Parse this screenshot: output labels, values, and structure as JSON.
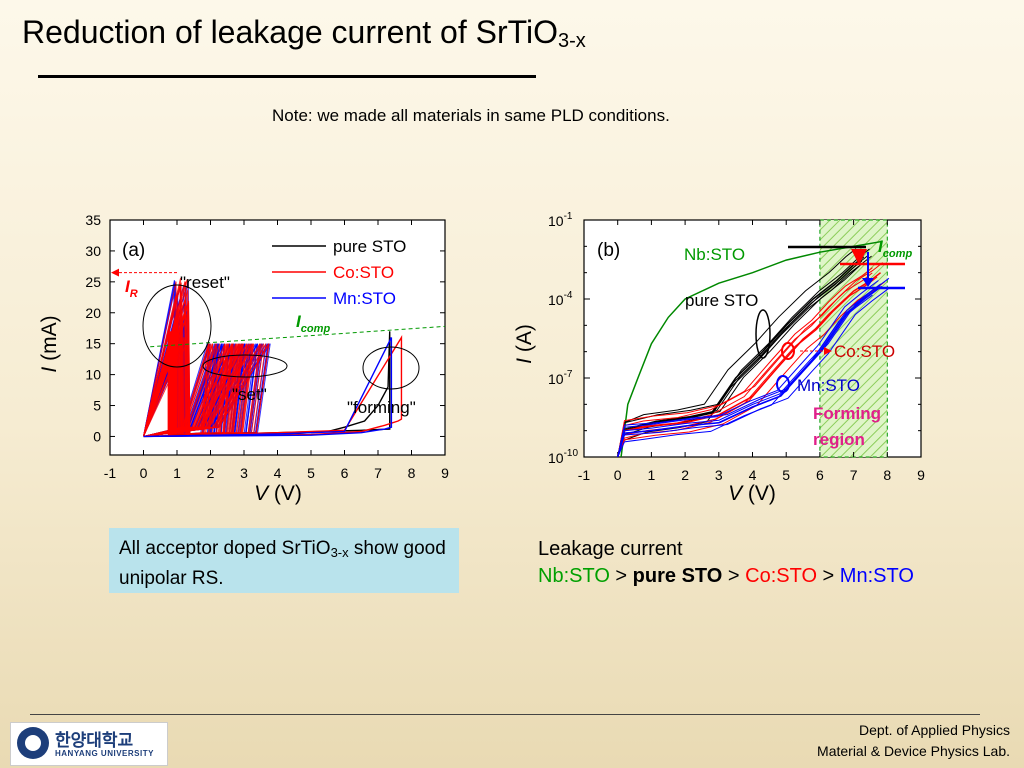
{
  "slide": {
    "title_main": "Reduction of leakage current of SrTiO",
    "title_sub": "3-x",
    "note": "Note: we made all materials in same PLD conditions.",
    "box_text_1": "All acceptor doped SrTiO",
    "box_sub": "3-x",
    "box_text_2": " show good unipolar RS.",
    "leakage_title": "Leakage current",
    "order": [
      {
        "text": "Nb:STO",
        "color": "#00a000",
        "bold": false
      },
      {
        "text": " > ",
        "color": "#000000",
        "bold": false
      },
      {
        "text": "pure STO",
        "color": "#000000",
        "bold": true
      },
      {
        "text": " > ",
        "color": "#000000",
        "bold": false
      },
      {
        "text": "Co:STO",
        "color": "#ff0000",
        "bold": false
      },
      {
        "text": " > ",
        "color": "#000000",
        "bold": false
      },
      {
        "text": "Mn:STO",
        "color": "#0000ff",
        "bold": false
      }
    ],
    "footer_line1": "Dept. of Applied Physics",
    "footer_line2": "Material & Device Physics Lab.",
    "logo_korean": "한양대학교",
    "logo_english": "HANYANG UNIVERSITY"
  },
  "colors": {
    "pure": "#000000",
    "co": "#ff0000",
    "mn": "#0000ff",
    "nb": "#008800",
    "icomp": "#00aa00",
    "forming": "#e0208a"
  },
  "chart_data": [
    {
      "type": "line",
      "panel_label": "(a)",
      "xlabel": "V (V)",
      "ylabel": "I (mA)",
      "xlim": [
        -1,
        9
      ],
      "ylim": [
        -3,
        35
      ],
      "xticks": [
        -1,
        0,
        1,
        2,
        3,
        4,
        5,
        6,
        7,
        8,
        9
      ],
      "yticks": [
        0,
        5,
        10,
        15,
        20,
        25,
        30,
        35
      ],
      "legend_position": "top-right",
      "series": [
        {
          "name": "pure STO",
          "color": "#000000",
          "x": [
            0,
            4,
            5.5,
            6,
            6.6,
            7,
            7.3,
            7.35,
            7.35,
            6.5,
            4,
            0
          ],
          "y": [
            0,
            0.3,
            0.8,
            1.5,
            2.5,
            5,
            8,
            17,
            1.2,
            1.0,
            0.6,
            0
          ]
        },
        {
          "name": "Co:STO",
          "color": "#ff0000",
          "x": [
            0,
            5,
            6.5,
            7.2,
            7.6,
            7.7,
            7.7,
            6,
            4,
            0
          ],
          "y": [
            0,
            0.3,
            0.8,
            1.8,
            2.5,
            2.8,
            16,
            1,
            0.6,
            0
          ]
        },
        {
          "name": "Mn:STO",
          "color": "#0000ff",
          "x": [
            0,
            5,
            6.5,
            7.2,
            7.4,
            7.4,
            6,
            4,
            0
          ],
          "y": [
            0,
            0.2,
            0.6,
            1.2,
            1.5,
            16,
            0.8,
            0.4,
            0
          ]
        }
      ],
      "annotations": [
        {
          "text": "\"reset\""
        },
        {
          "text": "\"set\""
        },
        {
          "text": "\"forming\""
        },
        {
          "text": "I",
          "sub": "R"
        },
        {
          "text": "I",
          "sub": "comp"
        }
      ]
    },
    {
      "type": "line",
      "panel_label": "(b)",
      "xlabel": "V (V)",
      "ylabel": "I (A)",
      "yscale": "log",
      "xlim": [
        -1,
        9
      ],
      "ylim": [
        1e-10,
        0.1
      ],
      "xticks": [
        -1,
        0,
        1,
        2,
        3,
        4,
        5,
        6,
        7,
        8,
        9
      ],
      "ytick_base": "10",
      "ytick_exponents": [
        "-1",
        "-4",
        "-7",
        "-10"
      ],
      "series": [
        {
          "name": "Nb:STO",
          "color": "#008800",
          "x": [
            0.1,
            0.3,
            0.6,
            1,
            1.5,
            2,
            3,
            4,
            5,
            6,
            7,
            7.8
          ],
          "y": [
            1e-10,
            1e-08,
            1e-07,
            2e-06,
            2e-05,
            0.0001,
            0.0004,
            0.001,
            0.003,
            0.006,
            0.01,
            0.015
          ]
        },
        {
          "name": "pure STO",
          "color": "#000000",
          "x": [
            0,
            0.2,
            1,
            2,
            2.8,
            3.5,
            4.3,
            5,
            5.8,
            6.5,
            7,
            7.3
          ],
          "y": [
            1e-10,
            1e-09,
            2e-09,
            3e-09,
            5e-09,
            1e-07,
            1e-06,
            1e-05,
            0.0001,
            0.0005,
            0.002,
            0.004
          ]
        },
        {
          "name": "Co:STO",
          "color": "#ff0000",
          "x": [
            0,
            0.2,
            1,
            2,
            3,
            4,
            4.8,
            5.5,
            6,
            6.5,
            7,
            7.5,
            7.8
          ],
          "y": [
            1e-10,
            1e-09,
            1.5e-09,
            2e-09,
            4e-09,
            2e-08,
            3e-07,
            3e-06,
            1e-05,
            5e-05,
            0.0002,
            0.0005,
            0.001
          ]
        },
        {
          "name": "Mn:STO",
          "color": "#0000ff",
          "x": [
            0,
            0.2,
            1,
            2,
            3,
            4,
            4.8,
            5.5,
            6,
            6.8,
            7.3,
            7.8
          ],
          "y": [
            1e-10,
            8e-10,
            1e-09,
            1.5e-09,
            2e-09,
            8e-09,
            2e-08,
            2e-07,
            1e-06,
            3e-05,
            0.0001,
            0.0003
          ]
        }
      ],
      "forming_region_x": [
        6,
        8
      ],
      "annotations": [
        {
          "text": "Forming region"
        },
        {
          "text": "I",
          "sub": "comp"
        }
      ]
    }
  ]
}
